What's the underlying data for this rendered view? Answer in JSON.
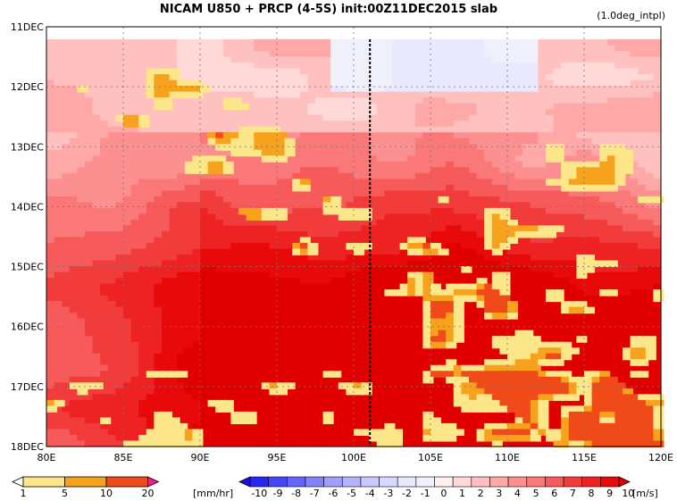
{
  "chart_data": {
    "type": "heatmap",
    "title": "NICAM   U850 + PRCP (4-5S) init:00Z11DEC2015 slab",
    "subtitle": "(1.0deg_intpl)",
    "x_ticks": [
      "80E",
      "85E",
      "90E",
      "95E",
      "100E",
      "105E",
      "110E",
      "115E",
      "120E"
    ],
    "y_ticks": [
      "11DEC",
      "12DEC",
      "13DEC",
      "14DEC",
      "15DEC",
      "16DEC",
      "17DEC",
      "18DEC"
    ],
    "xlim": [
      80,
      120
    ],
    "ylim_days": [
      11,
      18
    ],
    "grid": true,
    "reference_line_lon": 101,
    "precip_colorbar": {
      "levels": [
        "1",
        "5",
        "10",
        "20"
      ],
      "unit": "[mm/hr]",
      "colors": [
        "#ffffff",
        "#fce68a",
        "#f6a21c",
        "#ef4a18",
        "#ee1f8f"
      ]
    },
    "wind_colorbar": {
      "levels": [
        "-10",
        "-9",
        "-8",
        "-7",
        "-6",
        "-5",
        "-4",
        "-3",
        "-2",
        "-1",
        "0",
        "1",
        "2",
        "3",
        "4",
        "5",
        "6",
        "7",
        "8",
        "9",
        "10"
      ],
      "unit": "[m/s]",
      "colors": [
        "#1a10e0",
        "#2828f0",
        "#4646f5",
        "#6464f8",
        "#8282fa",
        "#a0a0fc",
        "#b4b4fd",
        "#c8c8fe",
        "#d8d8fe",
        "#e8e8ff",
        "#f0f0fa",
        "#fff0f0",
        "#ffd8d8",
        "#ffc0c0",
        "#ffa8a8",
        "#fc9090",
        "#fa7878",
        "#f65a5a",
        "#f23c3c",
        "#ee2222",
        "#e80a0a",
        "#e00000"
      ]
    }
  }
}
